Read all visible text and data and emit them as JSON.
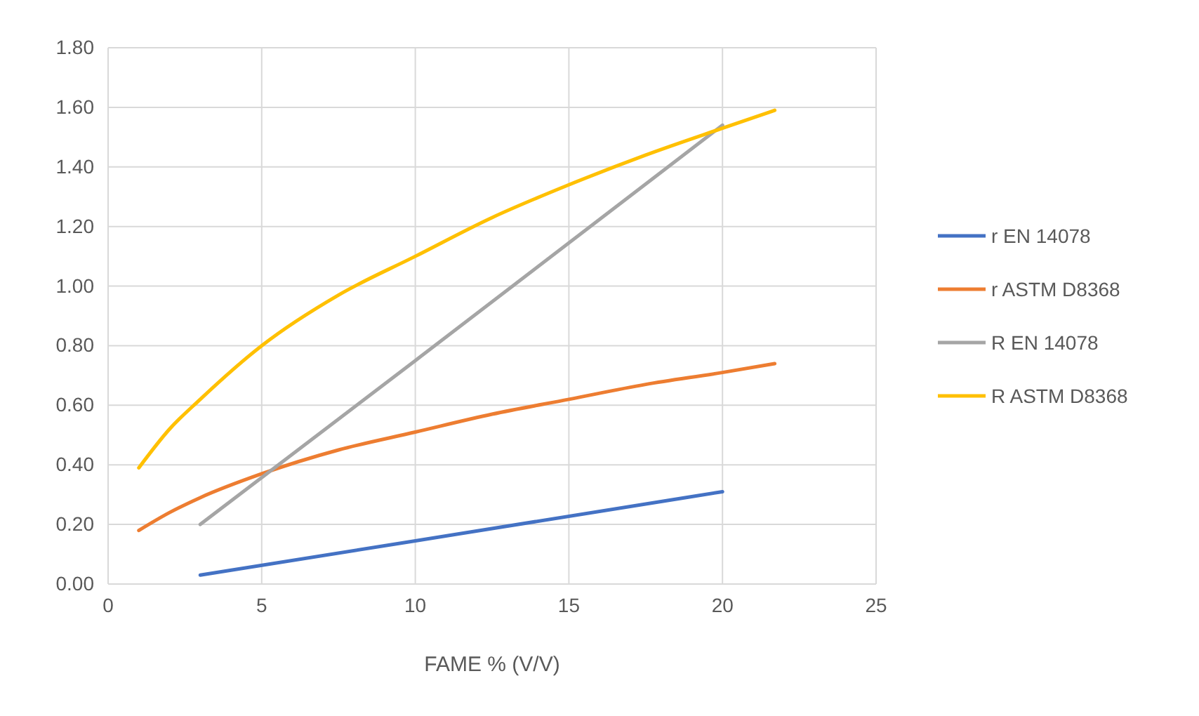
{
  "chart_data": {
    "type": "line",
    "xlabel": "FAME % (V/V)",
    "xlim": [
      0,
      25
    ],
    "xticks": [
      0,
      5,
      10,
      15,
      20,
      25
    ],
    "ylim": [
      0,
      1.8
    ],
    "yticks": [
      {
        "value": 0,
        "label": "0.00"
      },
      {
        "value": 0.2,
        "label": "0.20"
      },
      {
        "value": 0.4,
        "label": "0.40"
      },
      {
        "value": 0.6,
        "label": "0.60"
      },
      {
        "value": 0.8,
        "label": "0.80"
      },
      {
        "value": 1.0,
        "label": "1.00"
      },
      {
        "value": 1.2,
        "label": "1.20"
      },
      {
        "value": 1.4,
        "label": "1.40"
      },
      {
        "value": 1.6,
        "label": "1.60"
      },
      {
        "value": 1.8,
        "label": "1.80"
      }
    ],
    "grid": true,
    "legend": "right",
    "marker": "none",
    "line_style": "solid",
    "series": [
      {
        "name": "r EN 14078",
        "color": "#4472c4",
        "x": [
          3,
          10,
          20
        ],
        "values": [
          0.03,
          0.145,
          0.31
        ]
      },
      {
        "name": "r ASTM D8368",
        "color": "#ed7d31",
        "x": [
          1,
          2,
          3,
          5,
          7.5,
          10,
          12.5,
          15,
          17.5,
          20,
          21.7
        ],
        "values": [
          0.18,
          0.24,
          0.29,
          0.37,
          0.45,
          0.51,
          0.57,
          0.62,
          0.67,
          0.71,
          0.74
        ]
      },
      {
        "name": "R EN 14078",
        "color": "#a5a5a5",
        "x": [
          3,
          10,
          20
        ],
        "values": [
          0.2,
          0.75,
          1.54
        ]
      },
      {
        "name": "R ASTM D8368",
        "color": "#ffc000",
        "x": [
          1,
          2,
          3,
          5,
          7.5,
          10,
          12.5,
          15,
          17.5,
          20,
          21.7
        ],
        "values": [
          0.39,
          0.52,
          0.62,
          0.8,
          0.97,
          1.1,
          1.23,
          1.34,
          1.44,
          1.53,
          1.59
        ]
      }
    ]
  }
}
